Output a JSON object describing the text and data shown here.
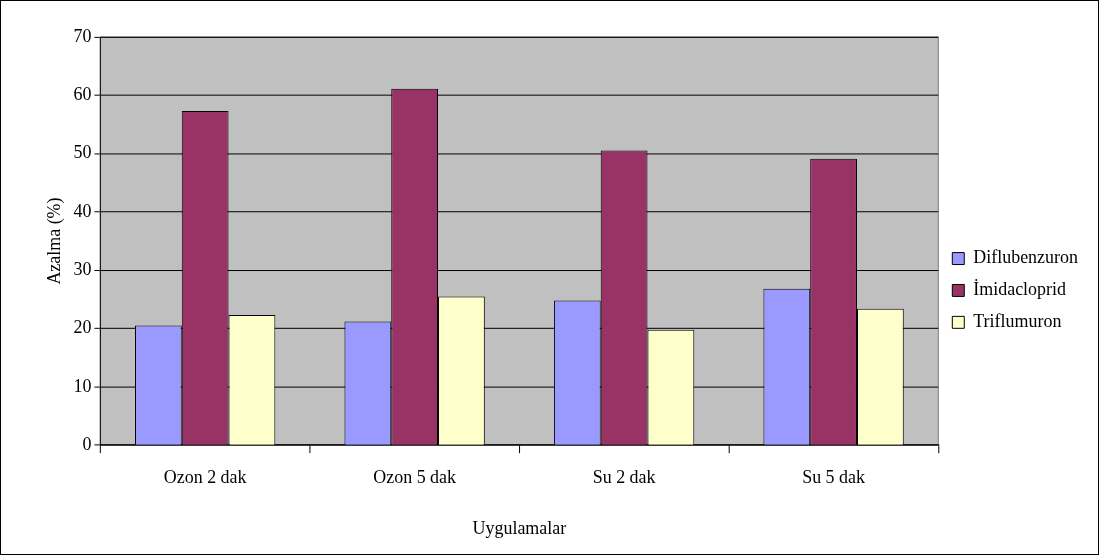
{
  "chart_data": {
    "type": "bar",
    "xlabel": "Uygulamalar",
    "ylabel": "Azalma (%)",
    "categories": [
      "Ozon 2 dak",
      "Ozon 5 dak",
      "Su 2 dak",
      "Su 5 dak"
    ],
    "series": [
      {
        "name": "Diflubenzuron",
        "color": "#9999ff",
        "values": [
          20.5,
          21.2,
          24.8,
          26.8
        ]
      },
      {
        "name": "İmidacloprid",
        "color": "#993366",
        "values": [
          57.3,
          61.1,
          50.5,
          49.1
        ]
      },
      {
        "name": "Triflumuron",
        "color": "#ffffcc",
        "values": [
          22.3,
          25.5,
          19.8,
          23.4
        ]
      }
    ],
    "ylim": [
      0,
      70
    ],
    "yticks": [
      0,
      10,
      20,
      30,
      40,
      50,
      60,
      70
    ],
    "grid": "y",
    "legend": "right"
  }
}
